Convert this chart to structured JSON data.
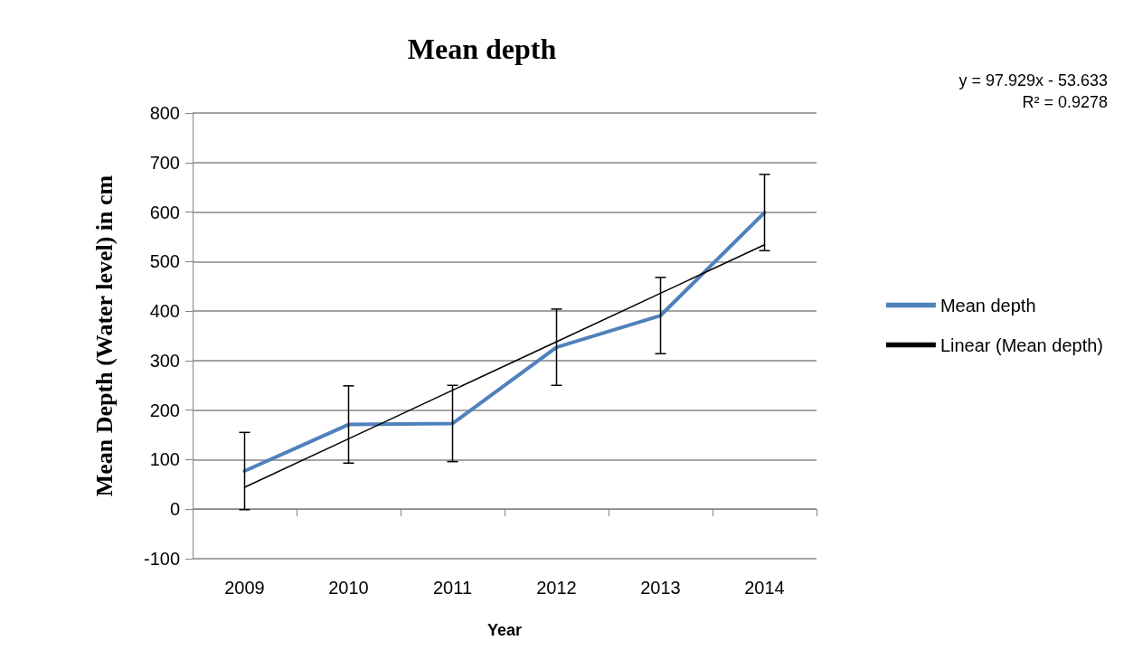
{
  "chart_data": {
    "type": "line",
    "title": "Mean depth",
    "xlabel": "Year",
    "ylabel": "Mean Depth (Water level) in cm",
    "categories": [
      "2009",
      "2010",
      "2011",
      "2012",
      "2013",
      "2014"
    ],
    "series": [
      {
        "name": "Mean depth",
        "color": "#4f81bd",
        "values": [
          77,
          171,
          173,
          327,
          391,
          599
        ],
        "errors": [
          78,
          78,
          77,
          77,
          77,
          77
        ]
      },
      {
        "name": "Linear (Mean depth)",
        "color": "#000000",
        "values": [
          44.3,
          142.2,
          240.2,
          338.1,
          436.0,
          533.9
        ]
      }
    ],
    "annotations": [
      "y = 97.929x - 53.633",
      "R² = 0.9278"
    ],
    "ylim": [
      -100,
      800
    ],
    "yticks": [
      -100,
      0,
      100,
      200,
      300,
      400,
      500,
      600,
      700,
      800
    ],
    "grid": "y",
    "legend": "right",
    "marker": "none",
    "line_style": "solid"
  }
}
